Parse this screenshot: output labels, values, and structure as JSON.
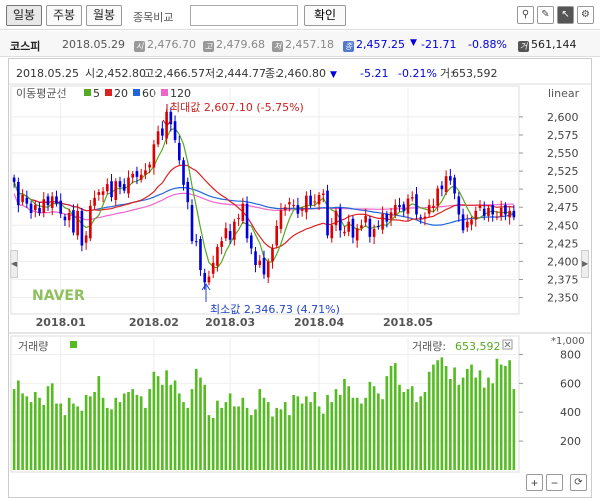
{
  "toolbar": {
    "periods": [
      {
        "label": "일봉",
        "active": true
      },
      {
        "label": "주봉",
        "active": false
      },
      {
        "label": "월봉",
        "active": false
      }
    ],
    "compare_label": "종목비교",
    "compare_input_value": "",
    "confirm_label": "확인",
    "tool_icons": [
      "pin-icon",
      "pencil-icon",
      "cursor-icon",
      "settings-icon"
    ]
  },
  "summary": {
    "name": "코스피",
    "date": "2018.05.29",
    "open_badge": "시",
    "open": "2,476.70",
    "high_badge": "고",
    "high": "2,479.68",
    "low_badge": "저",
    "low": "2,457.18",
    "close_badge": "종",
    "close": "2,457.25",
    "change_arrow": "▼",
    "change": "-21.71",
    "change_pct": "-0.88%",
    "volume_badge": "거",
    "volume": "561,144"
  },
  "colors": {
    "down": "#0000dd",
    "up": "#dd0000",
    "ma5": "#55aa22",
    "ma20": "#dd2222",
    "ma60": "#2266dd",
    "ma120": "#ee66cc",
    "volume": "#55bb22"
  },
  "chart_data": {
    "type": "candlestick",
    "info_bar": {
      "date": "2018.05.25",
      "open_label": "시:",
      "open": "2,452.80",
      "high_label": "고:",
      "high": "2,466.57",
      "low_label": "저:",
      "low": "2,444.77",
      "close_label": "종:",
      "close": "2,460.80",
      "arrow": "▼",
      "change": "-5.21",
      "change_pct": "-0.21%",
      "volume_label": "거:",
      "volume": "653,592"
    },
    "ma_legend_title": "이동평균선",
    "ma_legend": [
      {
        "label": "5",
        "color": "#55aa22"
      },
      {
        "label": "20",
        "color": "#dd2222"
      },
      {
        "label": "60",
        "color": "#2266dd"
      },
      {
        "label": "120",
        "color": "#ee66cc"
      }
    ],
    "scale_label": "linear",
    "y_ticks": [
      "2,600",
      "2,575",
      "2,550",
      "2,525",
      "2,500",
      "2,475",
      "2,450",
      "2,425",
      "2,400",
      "2,375",
      "2,350"
    ],
    "ylim": [
      2330,
      2640
    ],
    "x_ticks": [
      "2018.01",
      "2018.02",
      "2018.03",
      "2018.04",
      "2018.05"
    ],
    "max_annotation": "최대값 2,607.10 (-5.75%)",
    "min_annotation": "최소값 2,346.73 (4.71%)",
    "watermark": "NAVER",
    "closes": [
      2510,
      2478,
      2492,
      2480,
      2467,
      2478,
      2467,
      2486,
      2478,
      2490,
      2480,
      2466,
      2457,
      2467,
      2440,
      2470,
      2422,
      2436,
      2477,
      2488,
      2496,
      2497,
      2507,
      2489,
      2511,
      2503,
      2498,
      2516,
      2521,
      2517,
      2520,
      2526,
      2534,
      2562,
      2580,
      2574,
      2607,
      2590,
      2568,
      2540,
      2506,
      2482,
      2428,
      2427,
      2388,
      2371,
      2379,
      2398,
      2420,
      2428,
      2446,
      2430,
      2455,
      2460,
      2480,
      2432,
      2418,
      2395,
      2401,
      2382,
      2400,
      2418,
      2449,
      2471,
      2475,
      2482,
      2478,
      2466,
      2472,
      2491,
      2478,
      2483,
      2492,
      2494,
      2436,
      2450,
      2470,
      2443,
      2441,
      2455,
      2433,
      2446,
      2450,
      2463,
      2434,
      2445,
      2448,
      2466,
      2455,
      2468,
      2478,
      2475,
      2470,
      2487,
      2489,
      2465,
      2460,
      2462,
      2478,
      2477,
      2501,
      2500,
      2518,
      2512,
      2494,
      2465,
      2443,
      2455,
      2458,
      2470,
      2477,
      2463,
      2474,
      2465,
      2462,
      2474,
      2465,
      2470,
      2461
    ],
    "volumes": [
      560,
      620,
      530,
      510,
      470,
      540,
      500,
      450,
      580,
      600,
      460,
      460,
      380,
      500,
      460,
      440,
      410,
      520,
      510,
      540,
      650,
      500,
      430,
      420,
      500,
      470,
      530,
      540,
      560,
      520,
      510,
      430,
      560,
      680,
      650,
      590,
      690,
      590,
      620,
      530,
      470,
      430,
      560,
      700,
      640,
      590,
      380,
      360,
      480,
      430,
      470,
      530,
      440,
      440,
      500,
      430,
      380,
      420,
      560,
      500,
      470,
      370,
      430,
      420,
      470,
      380,
      520,
      510,
      460,
      510,
      470,
      540,
      440,
      390,
      520,
      470,
      560,
      520,
      630,
      580,
      500,
      500,
      460,
      500,
      610,
      580,
      530,
      490,
      650,
      720,
      740,
      590,
      540,
      560,
      580,
      470,
      510,
      540,
      680,
      730,
      760,
      780,
      720,
      630,
      710,
      590,
      640,
      700,
      730,
      640,
      690,
      570,
      640,
      600,
      770,
      730,
      720,
      760,
      560
    ],
    "volume_label": "거래량",
    "volume_right_label": "거래량:",
    "volume_right_value": "653,592",
    "volume_unit": "*1,000",
    "volume_ticks": [
      "800",
      "600",
      "400",
      "200"
    ],
    "volume_ylim": [
      0,
      900
    ]
  }
}
